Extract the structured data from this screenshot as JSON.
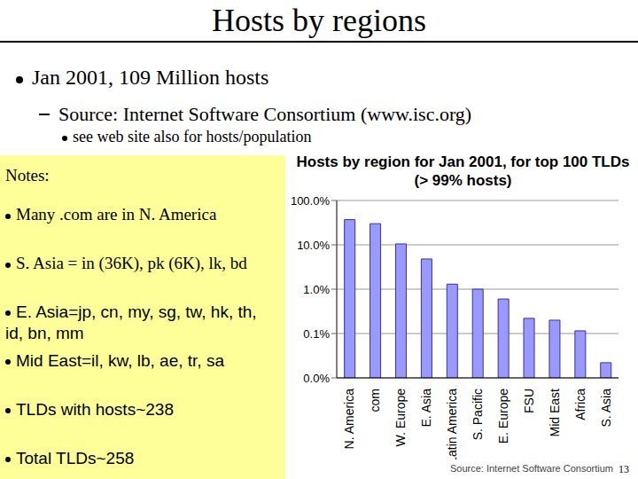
{
  "slide": {
    "title": "Hosts by regions",
    "bullet": "Jan 2001, 109 Million hosts",
    "sub_bullet": "Source: Internet Software Consortium (www.isc.org)",
    "sub_sub_bullet": "see web site also for hosts/population",
    "notes_heading": "Notes:",
    "notes": [
      "Many .com are in N. America",
      "S. Asia = in (36K), pk (6K), lk, bd",
      "E. Asia=jp, cn, my, sg, tw, hk, th, id, bn, mm",
      "Mid East=il, kw, lb, ae, tr, sa",
      "TLDs with hosts~238",
      "Total TLDs~258"
    ],
    "page_number": "13"
  },
  "chart_data": {
    "type": "bar",
    "title": "Hosts by region for Jan 2001, for top 100  TLDs (> 99% hosts)",
    "source": "Source: Internet Software Consortium",
    "categories": [
      "N. America",
      "com",
      "W. Europe",
      "E. Asia",
      "Latin America",
      "S. Pacific",
      "E. Europe",
      "FSU",
      "Mid East",
      "Africa",
      "S. Asia"
    ],
    "values": [
      37,
      30,
      10.5,
      4.8,
      1.3,
      1.0,
      0.6,
      0.22,
      0.2,
      0.115,
      0.022
    ],
    "color": "#9999ff",
    "log": "y",
    "ylim": [
      0.01,
      100
    ],
    "yticks": [
      {
        "value": 0.01,
        "label": "0.0%"
      },
      {
        "value": 0.1,
        "label": "0.1%"
      },
      {
        "value": 1,
        "label": "1.0%"
      },
      {
        "value": 10,
        "label": "10.0%"
      },
      {
        "value": 100,
        "label": "100.0%"
      }
    ],
    "grid": true
  }
}
